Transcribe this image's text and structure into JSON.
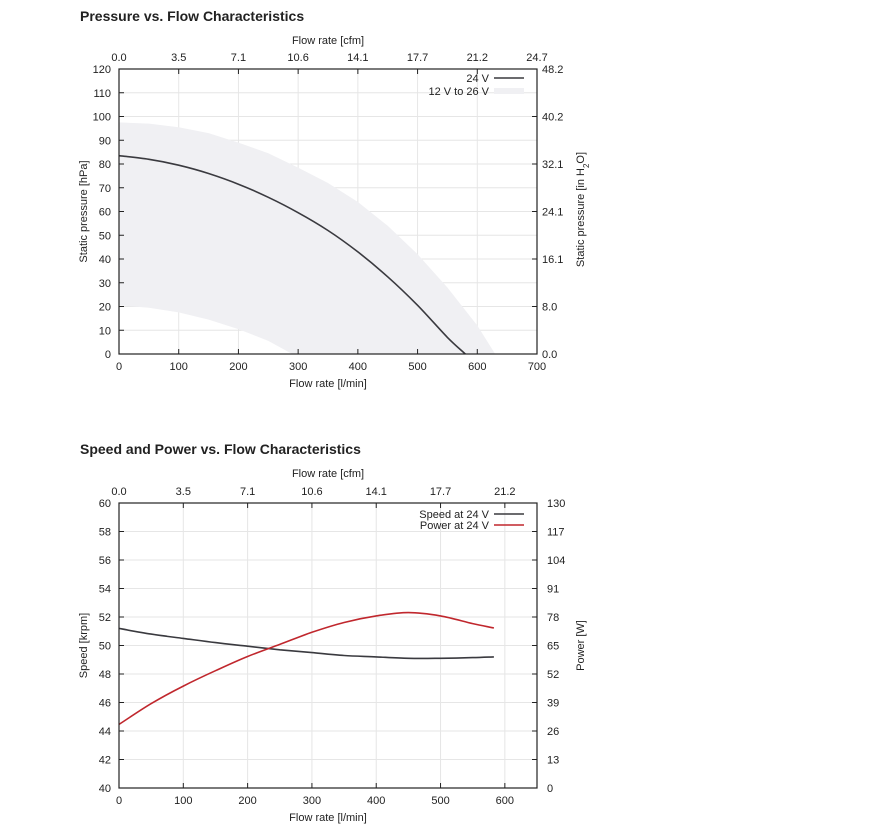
{
  "chart_data": [
    {
      "type": "area",
      "title": "Pressure vs. Flow Characteristics",
      "xlabel": "Flow rate [l/min]",
      "x2label": "Flow rate [cfm]",
      "ylabel": "Static pressure [hPa]",
      "y2label_main": "Static pressure [in H",
      "y2label_sub": "2",
      "y2label_tail": "O]",
      "xlim": [
        0,
        700
      ],
      "ylim": [
        0,
        120
      ],
      "xticks": [
        0,
        100,
        200,
        300,
        400,
        500,
        600,
        700
      ],
      "yticks": [
        0,
        10,
        20,
        30,
        40,
        50,
        60,
        70,
        80,
        90,
        100,
        110,
        120
      ],
      "x2ticks": [
        "0.0",
        "3.5",
        "7.1",
        "10.6",
        "14.1",
        "17.7",
        "21.2",
        "24.7"
      ],
      "y2ticks": [
        "0.0",
        "8.0",
        "16.1",
        "24.1",
        "32.1",
        "40.2",
        "48.2"
      ],
      "y2tick_values": [
        0,
        20,
        40,
        60,
        80,
        100,
        120
      ],
      "grid": true,
      "legend_position": "top-right",
      "series": [
        {
          "name": "24 V",
          "color": "#3a3a3f",
          "points": [
            [
              0,
              83.5
            ],
            [
              50,
              82
            ],
            [
              100,
              79.5
            ],
            [
              150,
              76
            ],
            [
              200,
              71.5
            ],
            [
              250,
              66
            ],
            [
              300,
              59.5
            ],
            [
              350,
              52
            ],
            [
              400,
              43
            ],
            [
              450,
              32.5
            ],
            [
              500,
              20.5
            ],
            [
              550,
              7
            ],
            [
              580,
              0
            ]
          ]
        },
        {
          "name": "12 V to 26 V",
          "kind": "band",
          "color": "#f0f0f3",
          "upper": [
            [
              0,
              97.5
            ],
            [
              50,
              97
            ],
            [
              100,
              95.5
            ],
            [
              150,
              93
            ],
            [
              200,
              89
            ],
            [
              250,
              84.5
            ],
            [
              300,
              78.5
            ],
            [
              350,
              72
            ],
            [
              400,
              64
            ],
            [
              450,
              54
            ],
            [
              500,
              42
            ],
            [
              550,
              28
            ],
            [
              600,
              12
            ],
            [
              630,
              0
            ]
          ],
          "lower": [
            [
              0,
              20.5
            ],
            [
              50,
              19.5
            ],
            [
              100,
              17.5
            ],
            [
              150,
              14.5
            ],
            [
              200,
              10.5
            ],
            [
              250,
              5.5
            ],
            [
              290,
              0
            ]
          ]
        }
      ]
    },
    {
      "type": "line",
      "title": "Speed and Power vs. Flow Characteristics",
      "xlabel": "Flow rate [l/min]",
      "x2label": "Flow rate [cfm]",
      "ylabel": "Speed [krpm]",
      "y2label": "Power [W]",
      "xlim": [
        0,
        650
      ],
      "ylim": [
        40,
        60
      ],
      "y2lim": [
        0,
        130
      ],
      "xticks": [
        0,
        100,
        200,
        300,
        400,
        500,
        600
      ],
      "yticks": [
        40,
        42,
        44,
        46,
        48,
        50,
        52,
        54,
        56,
        58,
        60
      ],
      "x2ticks": [
        "0.0",
        "3.5",
        "7.1",
        "10.6",
        "14.1",
        "17.7",
        "21.2"
      ],
      "y2ticks": [
        0,
        13,
        26,
        39,
        52,
        65,
        78,
        91,
        104,
        117,
        130
      ],
      "grid": true,
      "legend_position": "top-right",
      "series": [
        {
          "name": "Speed at 24 V",
          "axis": "left",
          "color": "#3a3a3f",
          "points": [
            [
              0,
              51.2
            ],
            [
              50,
              50.8
            ],
            [
              100,
              50.5
            ],
            [
              150,
              50.2
            ],
            [
              200,
              49.95
            ],
            [
              250,
              49.7
            ],
            [
              300,
              49.5
            ],
            [
              350,
              49.3
            ],
            [
              400,
              49.2
            ],
            [
              450,
              49.1
            ],
            [
              500,
              49.1
            ],
            [
              550,
              49.15
            ],
            [
              583,
              49.2
            ]
          ]
        },
        {
          "name": "Power at 24 V",
          "axis": "right",
          "color": "#c0272d",
          "points": [
            [
              0,
              29
            ],
            [
              50,
              38.5
            ],
            [
              100,
              46.5
            ],
            [
              150,
              53.5
            ],
            [
              200,
              60
            ],
            [
              250,
              65.5
            ],
            [
              300,
              71
            ],
            [
              350,
              75.5
            ],
            [
              400,
              78.5
            ],
            [
              450,
              80
            ],
            [
              500,
              78.5
            ],
            [
              550,
              75
            ],
            [
              583,
              73
            ]
          ]
        }
      ]
    }
  ]
}
